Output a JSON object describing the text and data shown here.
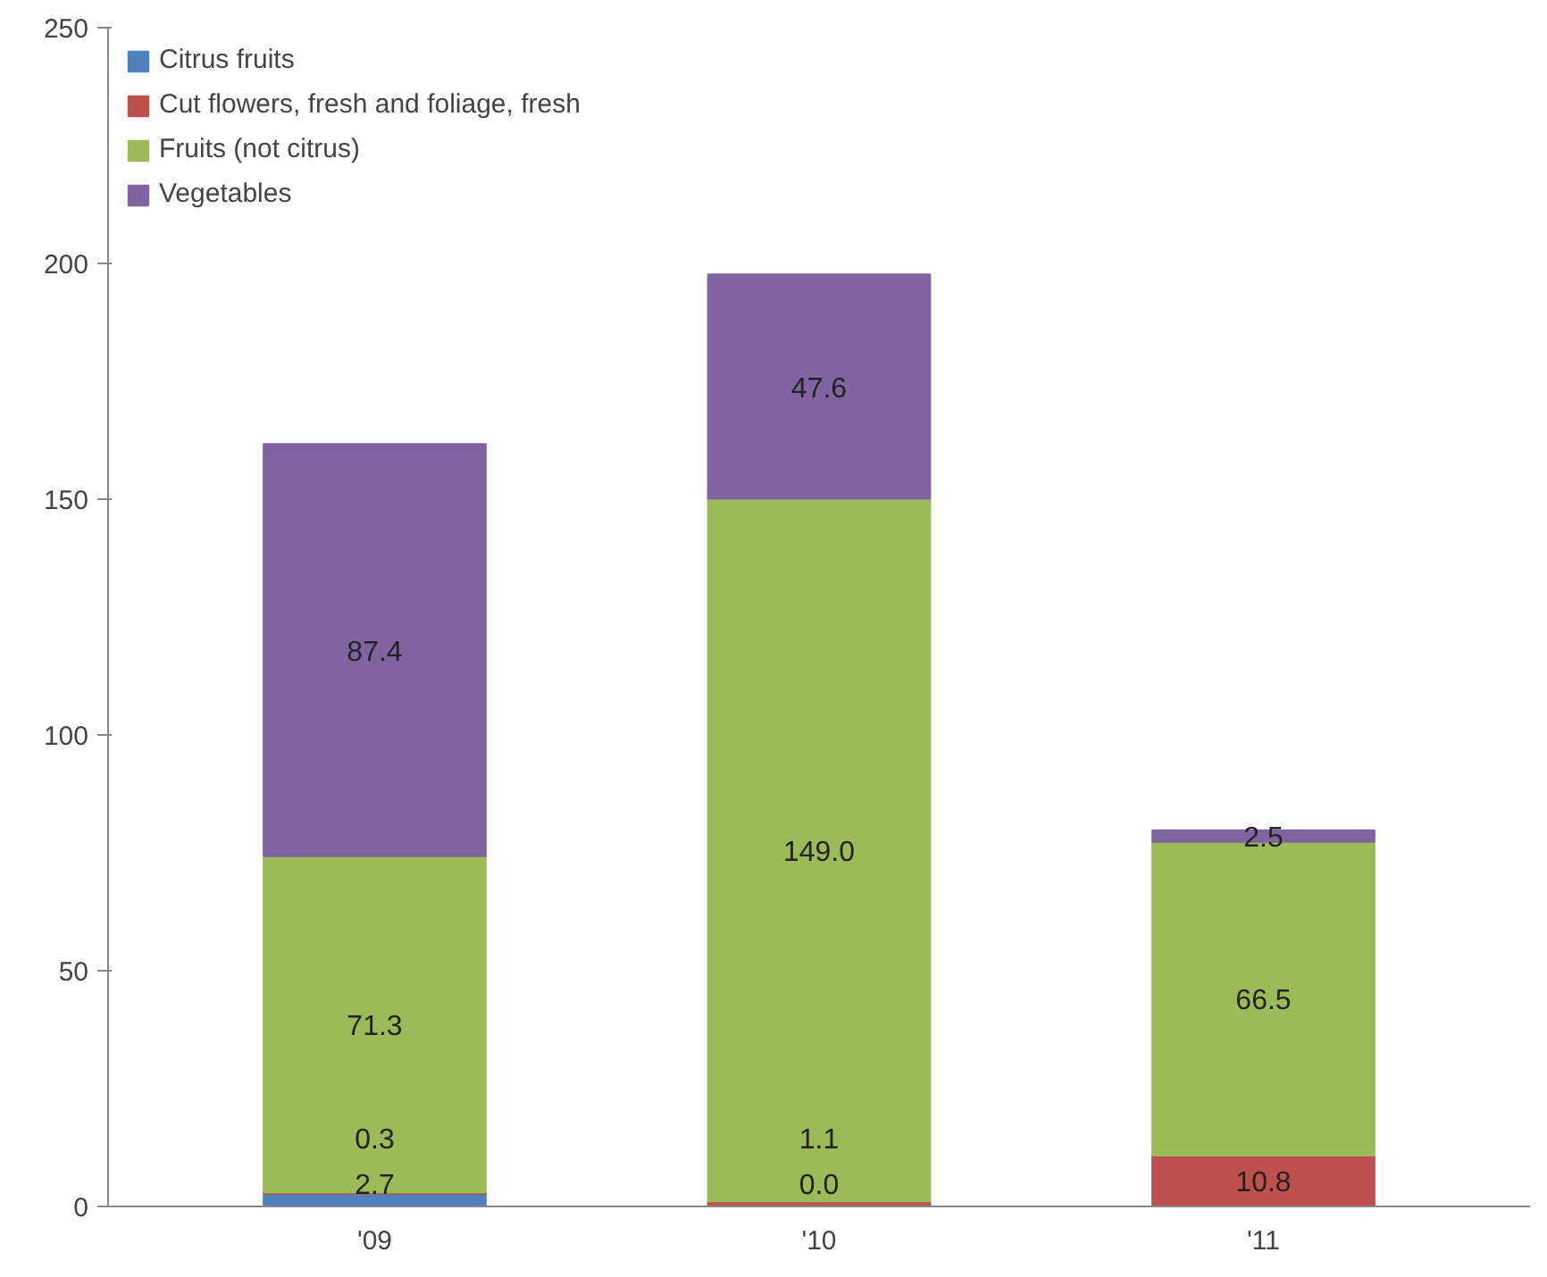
{
  "chart_data": {
    "type": "bar",
    "stacked": true,
    "categories": [
      "'09",
      "'10",
      "'11"
    ],
    "series": [
      {
        "name": "Citrus fruits",
        "color": "#4f81bd",
        "values": [
          2.7,
          0.0,
          null
        ],
        "value_labels": [
          "2.7",
          "0.0",
          null
        ]
      },
      {
        "name": "Cut flowers, fresh and foliage, fresh",
        "color": "#c0504d",
        "values": [
          0.3,
          1.1,
          10.8
        ],
        "value_labels": [
          "0.3",
          "1.1",
          "10.8"
        ]
      },
      {
        "name": "Fruits (not citrus)",
        "color": "#9bbb59",
        "values": [
          71.3,
          149.0,
          66.5
        ],
        "value_labels": [
          "71.3",
          "149.0",
          "66.5"
        ]
      },
      {
        "name": "Vegetables",
        "color": "#8064a2",
        "values": [
          87.4,
          47.6,
          2.5
        ],
        "value_labels": [
          "87.4",
          "47.6",
          "2.5"
        ]
      }
    ],
    "ylim": [
      0,
      250
    ],
    "yticks": [
      0,
      50,
      100,
      150,
      200,
      250
    ],
    "grid": false,
    "legend": "top left"
  }
}
